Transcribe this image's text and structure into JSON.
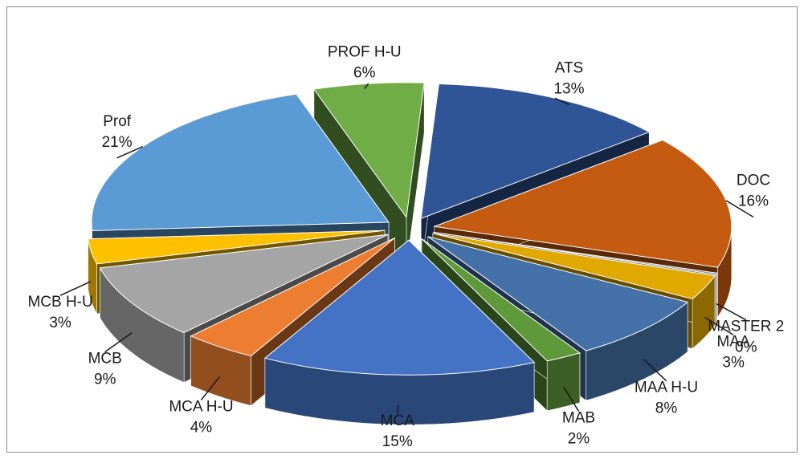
{
  "chart_data": {
    "type": "pie",
    "title": "",
    "exploded": true,
    "three_d": true,
    "series": [
      {
        "values": [
          13,
          16,
          0,
          3,
          8,
          2,
          15,
          4,
          9,
          3,
          21,
          6
        ]
      }
    ],
    "slices": [
      {
        "label": "ATS",
        "pct": "13%",
        "value": 13,
        "color": "#2f5597"
      },
      {
        "label": "DOC",
        "pct": "16%",
        "value": 16,
        "color": "#c55a11"
      },
      {
        "label": "MASTER 2",
        "pct": "0%",
        "value": 0,
        "color": "#7f7f7f"
      },
      {
        "label": "MAA",
        "pct": "3%",
        "value": 3,
        "color": "#e0a800"
      },
      {
        "label": "MAA H-U",
        "pct": "8%",
        "value": 8,
        "color": "#4472a8"
      },
      {
        "label": "MAB",
        "pct": "2%",
        "value": 2,
        "color": "#5f9a3a"
      },
      {
        "label": "MCA",
        "pct": "15%",
        "value": 15,
        "color": "#4472c4"
      },
      {
        "label": "MCA H-U",
        "pct": "4%",
        "value": 4,
        "color": "#ed7d31"
      },
      {
        "label": "MCB",
        "pct": "9%",
        "value": 9,
        "color": "#a5a5a5"
      },
      {
        "label": "MCB H-U",
        "pct": "3%",
        "value": 3,
        "color": "#ffc000"
      },
      {
        "label": "Prof",
        "pct": "21%",
        "value": 21,
        "color": "#5b9bd5"
      },
      {
        "label": "PROF H-U",
        "pct": "6%",
        "value": 6,
        "color": "#70ad47"
      }
    ],
    "legend": "none",
    "data_labels": "category name and percentage"
  }
}
